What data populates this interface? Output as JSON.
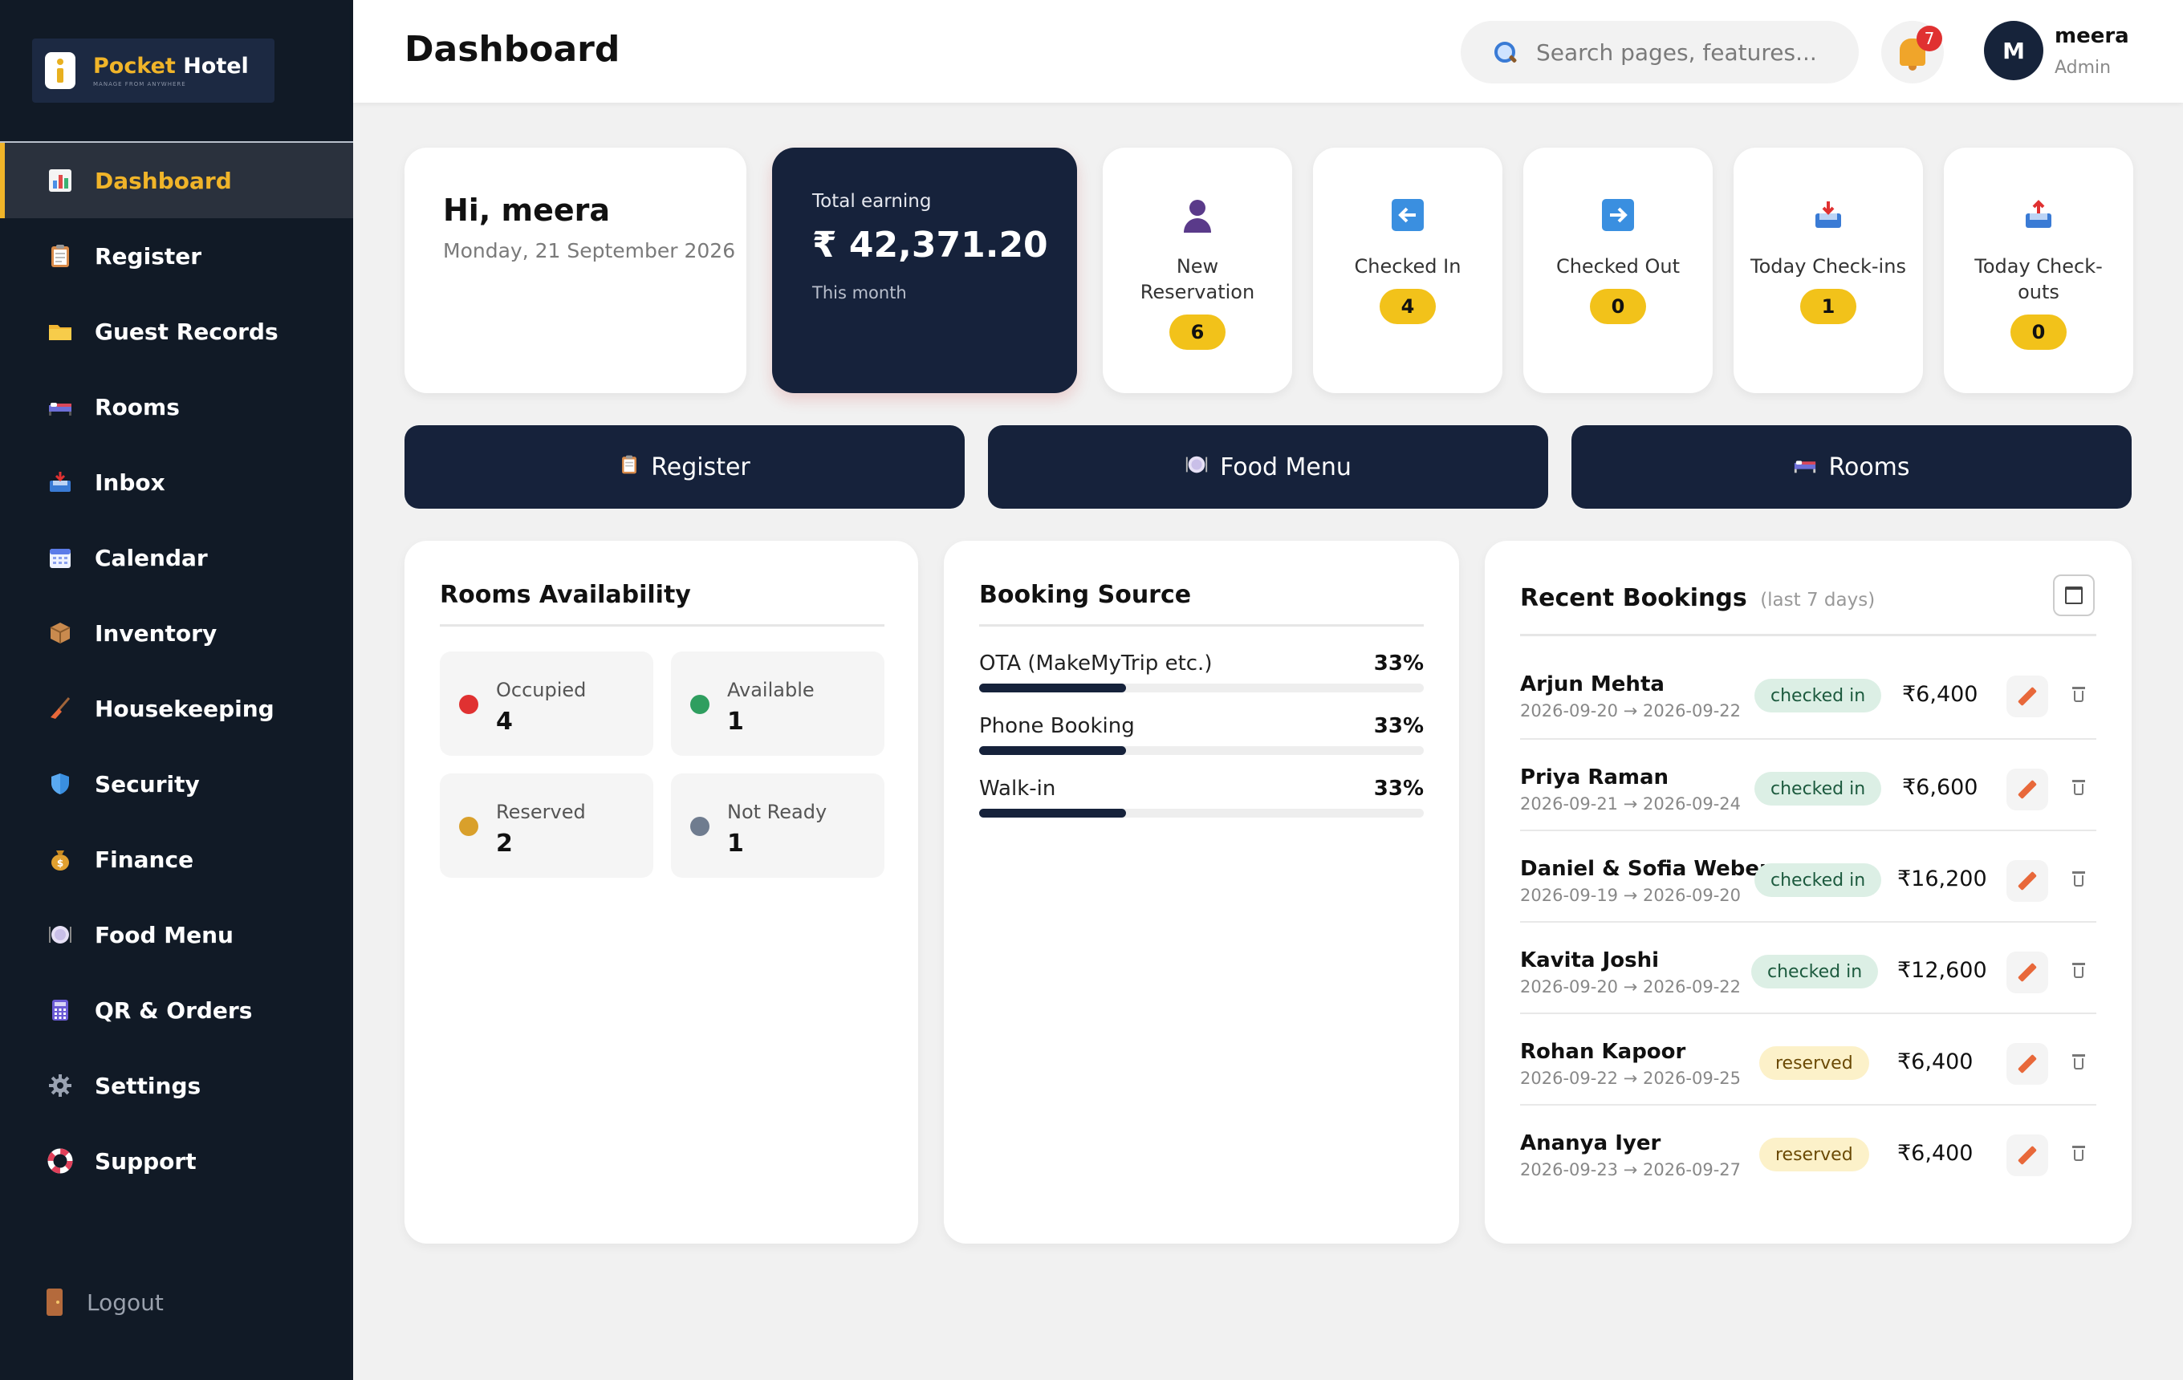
{
  "app": {
    "name_part1": "Pocket",
    "name_part2": " Hotel",
    "tagline": "MANAGE FROM ANYWHERE"
  },
  "sidebar": {
    "items": [
      {
        "label": "Dashboard",
        "icon": "chart-icon",
        "active": true
      },
      {
        "label": "Register",
        "icon": "clipboard-icon"
      },
      {
        "label": "Guest Records",
        "icon": "folder-icon"
      },
      {
        "label": "Rooms",
        "icon": "bed-icon"
      },
      {
        "label": "Inbox",
        "icon": "inbox-icon"
      },
      {
        "label": "Calendar",
        "icon": "calendar-icon"
      },
      {
        "label": "Inventory",
        "icon": "package-icon"
      },
      {
        "label": "Housekeeping",
        "icon": "broom-icon"
      },
      {
        "label": "Security",
        "icon": "shield-icon"
      },
      {
        "label": "Finance",
        "icon": "money-bag-icon"
      },
      {
        "label": "Food Menu",
        "icon": "plate-icon"
      },
      {
        "label": "QR & Orders",
        "icon": "abacus-icon"
      },
      {
        "label": "Settings",
        "icon": "gear-icon"
      },
      {
        "label": "Support",
        "icon": "lifebuoy-icon"
      }
    ],
    "logout_label": "Logout"
  },
  "header": {
    "title": "Dashboard",
    "search_placeholder": "Search pages, features...",
    "notification_count": "7",
    "avatar_initial": "M",
    "user_name": "meera",
    "user_role": "Admin"
  },
  "greeting": {
    "hi": "Hi, meera",
    "date": "Monday, 21 September 2026"
  },
  "earning": {
    "label": "Total earning",
    "amount": "₹ 42,371.20",
    "period": "This month"
  },
  "stats": [
    {
      "label": "New Reservation",
      "value": "6",
      "icon": "person-icon"
    },
    {
      "label": "Checked In",
      "value": "4",
      "icon": "arrow-left-icon"
    },
    {
      "label": "Checked Out",
      "value": "0",
      "icon": "arrow-right-icon"
    },
    {
      "label": "Today Check-ins",
      "value": "1",
      "icon": "inbox-tray-icon"
    },
    {
      "label": "Today Check-outs",
      "value": "0",
      "icon": "outbox-tray-icon"
    }
  ],
  "actions": [
    {
      "label": "Register",
      "icon": "clipboard-icon"
    },
    {
      "label": "Food Menu",
      "icon": "plate-icon"
    },
    {
      "label": "Rooms",
      "icon": "bed-icon"
    }
  ],
  "rooms_availability": {
    "title": "Rooms Availability",
    "items": [
      {
        "label": "Occupied",
        "value": "4",
        "color": "#e03131"
      },
      {
        "label": "Available",
        "value": "1",
        "color": "#2f9e5f"
      },
      {
        "label": "Reserved",
        "value": "2",
        "color": "#d9a02b"
      },
      {
        "label": "Not Ready",
        "value": "1",
        "color": "#6f7c8f"
      }
    ]
  },
  "booking_source": {
    "title": "Booking Source",
    "items": [
      {
        "label": "OTA (MakeMyTrip etc.)",
        "percent_text": "33%",
        "percent": 33
      },
      {
        "label": "Phone Booking",
        "percent_text": "33%",
        "percent": 33
      },
      {
        "label": "Walk-in",
        "percent_text": "33%",
        "percent": 33
      }
    ]
  },
  "recent_bookings": {
    "title": "Recent Bookings",
    "subtitle": "(last 7 days)",
    "rows": [
      {
        "name": "Arjun Mehta",
        "dates": "2026-09-20 → 2026-09-22",
        "status": "checked in",
        "amount": "₹6,400"
      },
      {
        "name": "Priya Raman",
        "dates": "2026-09-21 → 2026-09-24",
        "status": "checked in",
        "amount": "₹6,600"
      },
      {
        "name": "Daniel & Sofia Weber",
        "dates": "2026-09-19 → 2026-09-20",
        "status": "checked in",
        "amount": "₹16,200"
      },
      {
        "name": "Kavita Joshi",
        "dates": "2026-09-20 → 2026-09-22",
        "status": "checked in",
        "amount": "₹12,600"
      },
      {
        "name": "Rohan Kapoor",
        "dates": "2026-09-22 → 2026-09-25",
        "status": "reserved",
        "amount": "₹6,400"
      },
      {
        "name": "Ananya Iyer",
        "dates": "2026-09-23 → 2026-09-27",
        "status": "reserved",
        "amount": "₹6,400"
      }
    ]
  }
}
